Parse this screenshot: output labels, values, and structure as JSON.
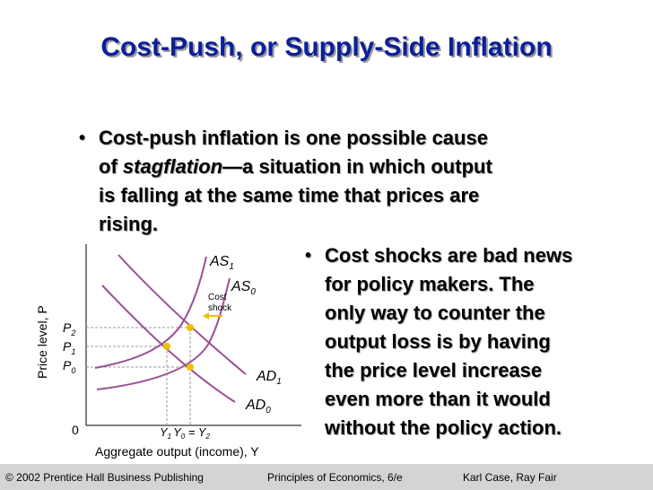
{
  "title": "Cost-Push, or Supply-Side Inflation",
  "bullet1": {
    "line1": "Cost-push inflation is one possible cause",
    "line2_pre": "of ",
    "line2_term": "stagflation",
    "line2_post": "—a situation in which output",
    "line3": "is falling at the same time that prices are",
    "line4": "rising."
  },
  "bullet2": {
    "lines": [
      "Cost shocks are bad news",
      "for policy makers.  The",
      "only way to counter the",
      "output loss is by having",
      "the price level increase",
      "even more than it would",
      "without the policy action."
    ]
  },
  "chart": {
    "ylabel": "Price level, P",
    "xlabel": "Aggregate output (income), Y",
    "origin": "0",
    "ylabels": {
      "p2": "P",
      "p2sub": "2",
      "p1": "P",
      "p1sub": "1",
      "p0": "P",
      "p0sub": "0"
    },
    "xlabels": {
      "y1": "Y",
      "y1sub": "1",
      "y0": "Y",
      "y0sub": "0",
      "eq": " = Y",
      "y2sub": "2"
    },
    "curves": {
      "as1": "AS",
      "as1sub": "1",
      "as0": "AS",
      "as0sub": "0",
      "ad1": "AD",
      "ad1sub": "1",
      "ad0": "AD",
      "ad0sub": "0"
    },
    "shock1": "Cost",
    "shock2": "shock",
    "colors": {
      "curve": "#9b4f96",
      "point": "#f0c000",
      "arrow": "#f0c000",
      "dash": "#9a9a9a"
    }
  },
  "footer": {
    "copyright": "© 2002 Prentice Hall Business Publishing",
    "book": "Principles of Economics, 6/e",
    "authors": "Karl Case, Ray Fair"
  }
}
